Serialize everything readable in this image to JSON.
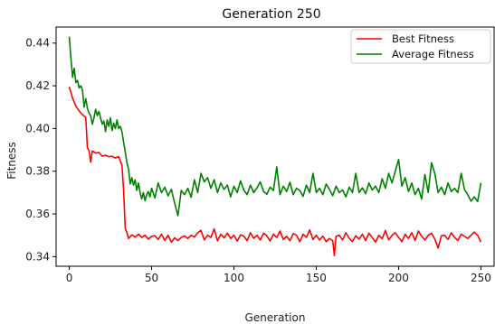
{
  "chart_data": {
    "type": "line",
    "title": "Generation 250",
    "xlabel": "Generation",
    "ylabel": "Fitness",
    "xlim": [
      -8,
      258
    ],
    "ylim": [
      0.3355,
      0.4475
    ],
    "x_ticks": [
      0,
      50,
      100,
      150,
      200,
      250
    ],
    "x_tick_labels": [
      "0",
      "50",
      "100",
      "150",
      "200",
      "250"
    ],
    "y_ticks": [
      0.34,
      0.36,
      0.38,
      0.4,
      0.42,
      0.44
    ],
    "y_tick_labels": [
      "0.34",
      "0.36",
      "0.38",
      "0.40",
      "0.42",
      "0.44"
    ],
    "grid": false,
    "legend_position": "top-right",
    "series": [
      {
        "name": "Best Fitness",
        "color": "#ff0000",
        "keypoints": [
          [
            0,
            0.4195
          ],
          [
            2,
            0.4142
          ],
          [
            4,
            0.4105
          ],
          [
            6,
            0.4082
          ],
          [
            8,
            0.4065
          ],
          [
            10,
            0.4052
          ],
          [
            11,
            0.391
          ],
          [
            12,
            0.3897
          ],
          [
            13,
            0.3842
          ],
          [
            14,
            0.3895
          ],
          [
            16,
            0.3885
          ],
          [
            18,
            0.3888
          ],
          [
            20,
            0.387
          ],
          [
            22,
            0.3875
          ],
          [
            24,
            0.3868
          ],
          [
            26,
            0.387
          ],
          [
            28,
            0.3862
          ],
          [
            30,
            0.3868
          ],
          [
            32,
            0.3828
          ],
          [
            33,
            0.371
          ],
          [
            34,
            0.3532
          ],
          [
            35,
            0.3512
          ],
          [
            36,
            0.3485
          ],
          [
            38,
            0.3502
          ],
          [
            40,
            0.3492
          ],
          [
            42,
            0.3505
          ],
          [
            44,
            0.349
          ],
          [
            46,
            0.35
          ],
          [
            48,
            0.3482
          ],
          [
            50,
            0.3495
          ],
          [
            52,
            0.3498
          ],
          [
            54,
            0.348
          ],
          [
            56,
            0.3505
          ],
          [
            58,
            0.3476
          ],
          [
            60,
            0.35
          ],
          [
            62,
            0.3468
          ],
          [
            64,
            0.3488
          ],
          [
            66,
            0.3475
          ],
          [
            68,
            0.349
          ],
          [
            70,
            0.3497
          ],
          [
            72,
            0.3485
          ],
          [
            74,
            0.35
          ],
          [
            76,
            0.3492
          ],
          [
            78,
            0.3512
          ],
          [
            80,
            0.3523
          ],
          [
            82,
            0.3478
          ],
          [
            84,
            0.35
          ],
          [
            86,
            0.349
          ],
          [
            88,
            0.353
          ],
          [
            90,
            0.3474
          ],
          [
            92,
            0.3505
          ],
          [
            94,
            0.3488
          ],
          [
            96,
            0.351
          ],
          [
            98,
            0.3485
          ],
          [
            100,
            0.35
          ],
          [
            102,
            0.3473
          ],
          [
            104,
            0.3502
          ],
          [
            106,
            0.3496
          ],
          [
            108,
            0.3475
          ],
          [
            110,
            0.3512
          ],
          [
            112,
            0.3486
          ],
          [
            114,
            0.35
          ],
          [
            116,
            0.3478
          ],
          [
            118,
            0.351
          ],
          [
            120,
            0.3497
          ],
          [
            122,
            0.3473
          ],
          [
            124,
            0.3505
          ],
          [
            126,
            0.349
          ],
          [
            128,
            0.352
          ],
          [
            130,
            0.348
          ],
          [
            132,
            0.3495
          ],
          [
            134,
            0.3475
          ],
          [
            136,
            0.3508
          ],
          [
            138,
            0.35
          ],
          [
            140,
            0.347
          ],
          [
            142,
            0.3505
          ],
          [
            144,
            0.349
          ],
          [
            146,
            0.3525
          ],
          [
            148,
            0.348
          ],
          [
            150,
            0.35
          ],
          [
            152,
            0.3478
          ],
          [
            154,
            0.3496
          ],
          [
            156,
            0.347
          ],
          [
            158,
            0.3485
          ],
          [
            160,
            0.3475
          ],
          [
            161,
            0.3405
          ],
          [
            162,
            0.3495
          ],
          [
            164,
            0.35
          ],
          [
            166,
            0.3478
          ],
          [
            168,
            0.3512
          ],
          [
            170,
            0.3486
          ],
          [
            172,
            0.347
          ],
          [
            174,
            0.3498
          ],
          [
            176,
            0.3482
          ],
          [
            178,
            0.3505
          ],
          [
            180,
            0.3475
          ],
          [
            182,
            0.351
          ],
          [
            184,
            0.349
          ],
          [
            186,
            0.3468
          ],
          [
            188,
            0.35
          ],
          [
            190,
            0.3484
          ],
          [
            192,
            0.3522
          ],
          [
            194,
            0.3478
          ],
          [
            196,
            0.35
          ],
          [
            198,
            0.3512
          ],
          [
            200,
            0.349
          ],
          [
            202,
            0.347
          ],
          [
            204,
            0.3505
          ],
          [
            206,
            0.3485
          ],
          [
            208,
            0.3512
          ],
          [
            210,
            0.3476
          ],
          [
            212,
            0.352
          ],
          [
            214,
            0.3495
          ],
          [
            216,
            0.3478
          ],
          [
            218,
            0.35
          ],
          [
            220,
            0.351
          ],
          [
            222,
            0.3482
          ],
          [
            224,
            0.344
          ],
          [
            226,
            0.3498
          ],
          [
            228,
            0.35
          ],
          [
            230,
            0.348
          ],
          [
            232,
            0.3512
          ],
          [
            234,
            0.349
          ],
          [
            236,
            0.3476
          ],
          [
            238,
            0.3505
          ],
          [
            240,
            0.3495
          ],
          [
            242,
            0.3485
          ],
          [
            244,
            0.35
          ],
          [
            246,
            0.3515
          ],
          [
            248,
            0.35
          ],
          [
            250,
            0.3468
          ]
        ]
      },
      {
        "name": "Average Fitness",
        "color": "#008000",
        "keypoints": [
          [
            0,
            0.443
          ],
          [
            1,
            0.433
          ],
          [
            2,
            0.424
          ],
          [
            3,
            0.4282
          ],
          [
            4,
            0.4215
          ],
          [
            5,
            0.4225
          ],
          [
            6,
            0.419
          ],
          [
            7,
            0.42
          ],
          [
            8,
            0.418
          ],
          [
            9,
            0.41
          ],
          [
            10,
            0.414
          ],
          [
            11,
            0.4095
          ],
          [
            12,
            0.4072
          ],
          [
            13,
            0.406
          ],
          [
            14,
            0.402
          ],
          [
            15,
            0.405
          ],
          [
            16,
            0.409
          ],
          [
            17,
            0.406
          ],
          [
            18,
            0.408
          ],
          [
            19,
            0.405
          ],
          [
            20,
            0.402
          ],
          [
            21,
            0.4035
          ],
          [
            22,
            0.3985
          ],
          [
            23,
            0.404
          ],
          [
            24,
            0.401
          ],
          [
            25,
            0.405
          ],
          [
            26,
            0.399
          ],
          [
            27,
            0.4025
          ],
          [
            28,
            0.4
          ],
          [
            29,
            0.404
          ],
          [
            30,
            0.4
          ],
          [
            31,
            0.401
          ],
          [
            32,
            0.3985
          ],
          [
            33,
            0.3935
          ],
          [
            34,
            0.389
          ],
          [
            35,
            0.384
          ],
          [
            36,
            0.381
          ],
          [
            37,
            0.374
          ],
          [
            38,
            0.377
          ],
          [
            39,
            0.3735
          ],
          [
            40,
            0.376
          ],
          [
            41,
            0.371
          ],
          [
            42,
            0.3745
          ],
          [
            43,
            0.37
          ],
          [
            44,
            0.367
          ],
          [
            45,
            0.37
          ],
          [
            46,
            0.3662
          ],
          [
            47,
            0.369
          ],
          [
            48,
            0.3705
          ],
          [
            49,
            0.368
          ],
          [
            50,
            0.372
          ],
          [
            52,
            0.3675
          ],
          [
            54,
            0.3745
          ],
          [
            56,
            0.37
          ],
          [
            58,
            0.3725
          ],
          [
            60,
            0.3685
          ],
          [
            62,
            0.3715
          ],
          [
            64,
            0.365
          ],
          [
            66,
            0.3592
          ],
          [
            68,
            0.371
          ],
          [
            70,
            0.369
          ],
          [
            72,
            0.372
          ],
          [
            74,
            0.3678
          ],
          [
            76,
            0.376
          ],
          [
            78,
            0.37
          ],
          [
            80,
            0.379
          ],
          [
            82,
            0.375
          ],
          [
            84,
            0.377
          ],
          [
            86,
            0.372
          ],
          [
            88,
            0.376
          ],
          [
            90,
            0.37
          ],
          [
            92,
            0.3745
          ],
          [
            94,
            0.3715
          ],
          [
            96,
            0.3735
          ],
          [
            98,
            0.368
          ],
          [
            100,
            0.373
          ],
          [
            102,
            0.37
          ],
          [
            104,
            0.3755
          ],
          [
            106,
            0.3712
          ],
          [
            108,
            0.369
          ],
          [
            110,
            0.3735
          ],
          [
            112,
            0.37
          ],
          [
            114,
            0.3722
          ],
          [
            116,
            0.375
          ],
          [
            118,
            0.3705
          ],
          [
            120,
            0.3692
          ],
          [
            122,
            0.3725
          ],
          [
            124,
            0.371
          ],
          [
            126,
            0.382
          ],
          [
            128,
            0.369
          ],
          [
            130,
            0.373
          ],
          [
            132,
            0.3705
          ],
          [
            134,
            0.3748
          ],
          [
            136,
            0.369
          ],
          [
            138,
            0.372
          ],
          [
            140,
            0.371
          ],
          [
            142,
            0.3682
          ],
          [
            144,
            0.3735
          ],
          [
            146,
            0.37
          ],
          [
            148,
            0.379
          ],
          [
            150,
            0.37
          ],
          [
            152,
            0.372
          ],
          [
            154,
            0.369
          ],
          [
            156,
            0.374
          ],
          [
            158,
            0.3715
          ],
          [
            160,
            0.3685
          ],
          [
            162,
            0.373
          ],
          [
            164,
            0.37
          ],
          [
            166,
            0.3712
          ],
          [
            168,
            0.368
          ],
          [
            170,
            0.3725
          ],
          [
            172,
            0.37
          ],
          [
            174,
            0.379
          ],
          [
            176,
            0.37
          ],
          [
            178,
            0.3722
          ],
          [
            180,
            0.3695
          ],
          [
            182,
            0.3745
          ],
          [
            184,
            0.3712
          ],
          [
            186,
            0.373
          ],
          [
            188,
            0.37
          ],
          [
            190,
            0.3765
          ],
          [
            192,
            0.372
          ],
          [
            194,
            0.379
          ],
          [
            196,
            0.3745
          ],
          [
            198,
            0.38
          ],
          [
            200,
            0.3855
          ],
          [
            202,
            0.373
          ],
          [
            204,
            0.377
          ],
          [
            206,
            0.3705
          ],
          [
            208,
            0.3745
          ],
          [
            210,
            0.369
          ],
          [
            212,
            0.372
          ],
          [
            214,
            0.367
          ],
          [
            216,
            0.3785
          ],
          [
            218,
            0.37
          ],
          [
            220,
            0.384
          ],
          [
            222,
            0.379
          ],
          [
            224,
            0.37
          ],
          [
            226,
            0.3725
          ],
          [
            228,
            0.369
          ],
          [
            230,
            0.3745
          ],
          [
            232,
            0.3705
          ],
          [
            234,
            0.372
          ],
          [
            236,
            0.37
          ],
          [
            238,
            0.379
          ],
          [
            240,
            0.3715
          ],
          [
            242,
            0.369
          ],
          [
            244,
            0.366
          ],
          [
            246,
            0.368
          ],
          [
            248,
            0.3658
          ],
          [
            250,
            0.3745
          ]
        ]
      }
    ]
  }
}
